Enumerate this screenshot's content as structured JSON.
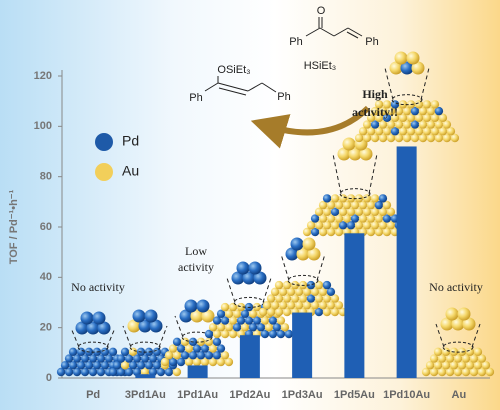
{
  "chart_data": {
    "type": "bar",
    "y_label": "TOF / Pd⁻¹•h⁻¹",
    "categories": [
      "Pd",
      "3Pd1Au",
      "1Pd1Au",
      "1Pd2Au",
      "1Pd3Au",
      "1Pd5Au",
      "1Pd10Au",
      "Au"
    ],
    "values": [
      0,
      1.5,
      5,
      17,
      26,
      57.5,
      92,
      0
    ],
    "color": "#1f5fb4",
    "ylim": [
      0,
      120
    ],
    "yticks": [
      0,
      20,
      40,
      60,
      80,
      100,
      120
    ],
    "legend": [
      {
        "label": "Pd",
        "color": "#1e5aa8"
      },
      {
        "label": "Au",
        "color": "#f2cf5a"
      }
    ],
    "annotations": [
      {
        "lines": [
          "No activity"
        ]
      },
      {
        "lines": [
          "Low",
          "activity"
        ]
      },
      {
        "lines": [
          "High",
          "activity!!"
        ]
      },
      {
        "lines": [
          "No activity"
        ]
      }
    ],
    "chemistry": {
      "reactant": {
        "oxygen": "O",
        "left_group": "Ph",
        "right_group": "Ph",
        "reagent": "HSiEt₃"
      },
      "product": {
        "silyl_ether": "OSiEt₃",
        "left_group": "Ph",
        "right_group": "Ph"
      }
    }
  }
}
